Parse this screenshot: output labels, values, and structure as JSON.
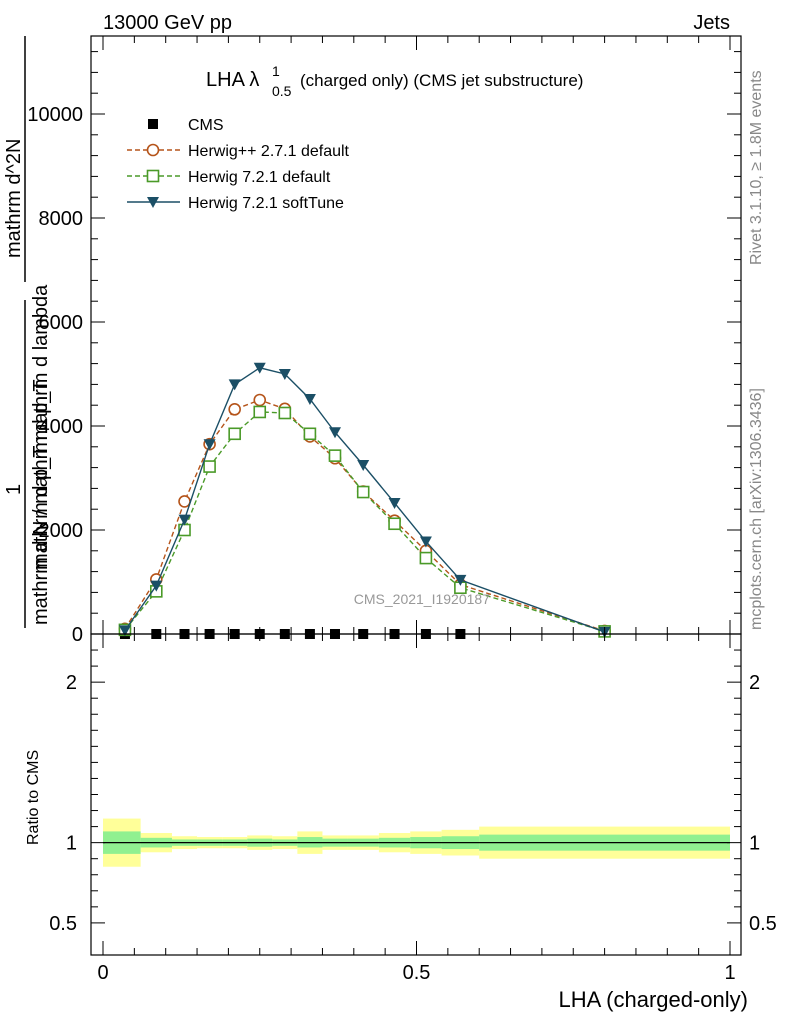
{
  "header": {
    "left": "13000 GeV pp",
    "right": "Jets"
  },
  "side_labels": {
    "rivet": "Rivet 3.1.10, ≥ 1.8M events",
    "mcplots": "mcplots.cern.ch [arXiv:1306.3436]"
  },
  "watermark": "CMS_2021_I1920187",
  "title": {
    "main": "LHA λ",
    "sup": "1",
    "sub": "0.5",
    "rest": "(charged only) (CMS jet substructure)"
  },
  "ylabel_main": {
    "numerator": "mathrm d^2N",
    "denominator": "mathrm d p_T mathrm d lambda",
    "numerator_left": "1",
    "denominator_left": "mathrm d N / mathrm d p_T"
  },
  "xlabel": "LHA (charged-only)",
  "ratio_ylabel": "Ratio to CMS",
  "chart_data": [
    {
      "type": "line",
      "panel": "main",
      "xlim": [
        0,
        1
      ],
      "ylim": [
        0,
        11500
      ],
      "y_ticks": [
        0,
        2000,
        4000,
        6000,
        8000,
        10000
      ],
      "y_tick_labels": [
        "0",
        "2000",
        "4000",
        "6000",
        "8000",
        "10000"
      ],
      "legend_position": "top-left",
      "series": [
        {
          "name": "CMS",
          "marker": "square-filled",
          "color": "#000000",
          "x": [
            0.035,
            0.085,
            0.13,
            0.17,
            0.21,
            0.25,
            0.29,
            0.33,
            0.37,
            0.415,
            0.465,
            0.515,
            0.57
          ],
          "y": [
            0,
            0,
            0,
            0,
            0,
            0,
            0,
            0,
            0,
            0,
            0,
            0,
            0
          ]
        },
        {
          "name": "Herwig++ 2.7.1 default",
          "marker": "circle-open",
          "dash": "dashed",
          "color": "#b5541a",
          "x": [
            0.035,
            0.085,
            0.13,
            0.17,
            0.21,
            0.25,
            0.29,
            0.33,
            0.37,
            0.415,
            0.465,
            0.515,
            0.57,
            0.8
          ],
          "y": [
            100,
            1050,
            2550,
            3650,
            4320,
            4500,
            4330,
            3800,
            3380,
            2740,
            2180,
            1600,
            950,
            60
          ]
        },
        {
          "name": "Herwig 7.2.1 default",
          "marker": "square-open",
          "dash": "dashed",
          "color": "#4a9a28",
          "x": [
            0.035,
            0.085,
            0.13,
            0.17,
            0.21,
            0.25,
            0.29,
            0.33,
            0.37,
            0.415,
            0.465,
            0.515,
            0.57,
            0.8
          ],
          "y": [
            80,
            820,
            2000,
            3220,
            3850,
            4270,
            4250,
            3850,
            3430,
            2730,
            2120,
            1460,
            890,
            50
          ]
        },
        {
          "name": "Herwig 7.2.1 softTune",
          "marker": "triangle-down-filled",
          "dash": "solid",
          "color": "#1b4f66",
          "x": [
            0.035,
            0.085,
            0.13,
            0.17,
            0.21,
            0.25,
            0.29,
            0.33,
            0.37,
            0.415,
            0.465,
            0.515,
            0.57,
            0.8
          ],
          "y": [
            70,
            930,
            2200,
            3650,
            4800,
            5120,
            5000,
            4520,
            3880,
            3250,
            2520,
            1780,
            1040,
            40
          ]
        }
      ]
    },
    {
      "type": "area",
      "panel": "ratio",
      "xlim": [
        0,
        1
      ],
      "ylim": [
        0.3,
        2.3
      ],
      "y_ticks": [
        0.5,
        1,
        2
      ],
      "y_tick_labels": [
        "0.5",
        "1",
        "2"
      ],
      "x_ticks": [
        0,
        0.5,
        1
      ],
      "x_tick_labels": [
        "0",
        "0.5",
        "1"
      ],
      "reference_line": 1,
      "bands": {
        "edges": [
          0.0,
          0.06,
          0.11,
          0.15,
          0.19,
          0.23,
          0.27,
          0.31,
          0.35,
          0.39,
          0.44,
          0.49,
          0.54,
          0.6,
          1.0
        ],
        "stat": {
          "color": "#90f090",
          "low": [
            0.93,
            0.97,
            0.98,
            0.98,
            0.98,
            0.975,
            0.98,
            0.97,
            0.975,
            0.975,
            0.97,
            0.965,
            0.96,
            0.95
          ],
          "high": [
            1.07,
            1.03,
            1.02,
            1.02,
            1.02,
            1.025,
            1.02,
            1.035,
            1.025,
            1.025,
            1.03,
            1.035,
            1.04,
            1.05
          ]
        },
        "syst": {
          "color": "#ffff99",
          "low": [
            0.85,
            0.94,
            0.96,
            0.965,
            0.965,
            0.955,
            0.96,
            0.93,
            0.955,
            0.955,
            0.94,
            0.93,
            0.92,
            0.9
          ],
          "high": [
            1.15,
            1.06,
            1.04,
            1.035,
            1.035,
            1.045,
            1.04,
            1.07,
            1.045,
            1.045,
            1.06,
            1.07,
            1.08,
            1.1
          ]
        }
      }
    }
  ]
}
